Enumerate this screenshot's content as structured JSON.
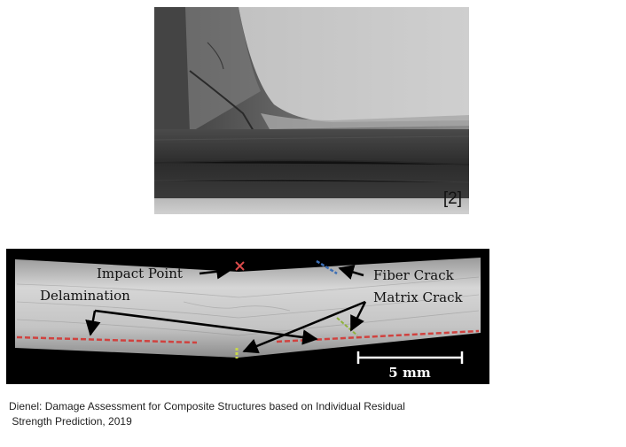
{
  "top_image": {
    "reference_label": "[2]"
  },
  "ct_scan": {
    "labels": {
      "impact_point": "Impact Point",
      "delamination": "Delamination",
      "fiber_crack": "Fiber Crack",
      "matrix_crack": "Matrix Crack",
      "scale_bar": "5 mm"
    },
    "colors": {
      "impact_marker": "#d94a4a",
      "delamination": "#d0423f",
      "fiber_crack": "#3d6fb5",
      "matrix_crack": "#8fb23c"
    }
  },
  "caption": {
    "line1": "Dienel: Damage Assessment for Composite Structures based on Individual Residual",
    "line2": " Strength Prediction, 2019"
  }
}
